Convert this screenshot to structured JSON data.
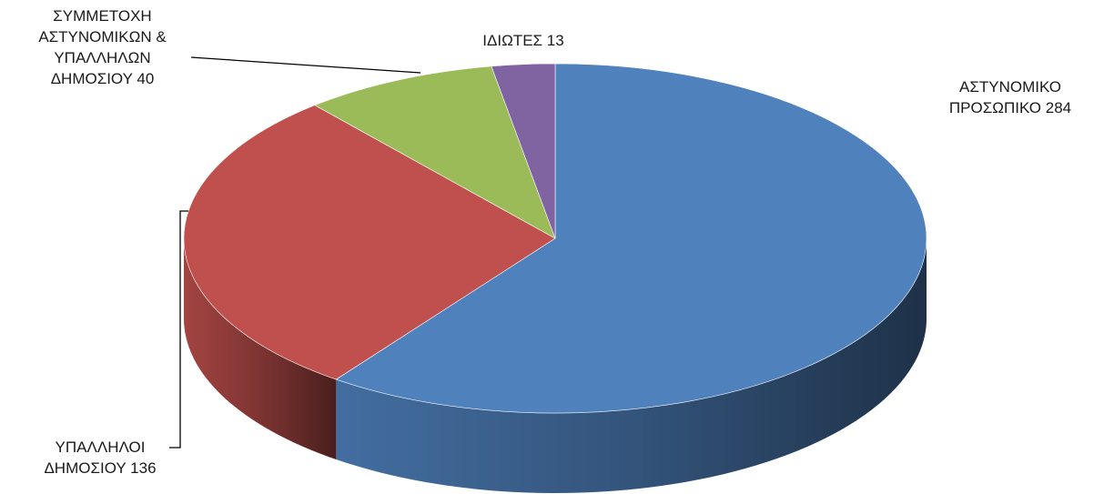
{
  "chart_data": {
    "type": "pie3d",
    "categories": [
      "ΑΣΤΥΝΟΜΙΚΟ ΠΡΟΣΩΠΙΚΟ",
      "ΥΠΑΛΛΗΛΟΙ ΔΗΜΟΣΙΟΥ",
      "ΣΥΜΜΕΤΟΧΗ ΑΣΤΥΝΟΜΙΚΩΝ & ΥΠΑΛΛΗΛΩΝ ΔΗΜΟΣΙΟΥ",
      "ΙΔΙΩΤΕΣ"
    ],
    "values": [
      284,
      136,
      40,
      13
    ],
    "colors": [
      "#4f81bd",
      "#c0504d",
      "#9bbb59",
      "#8064a2"
    ]
  }
}
